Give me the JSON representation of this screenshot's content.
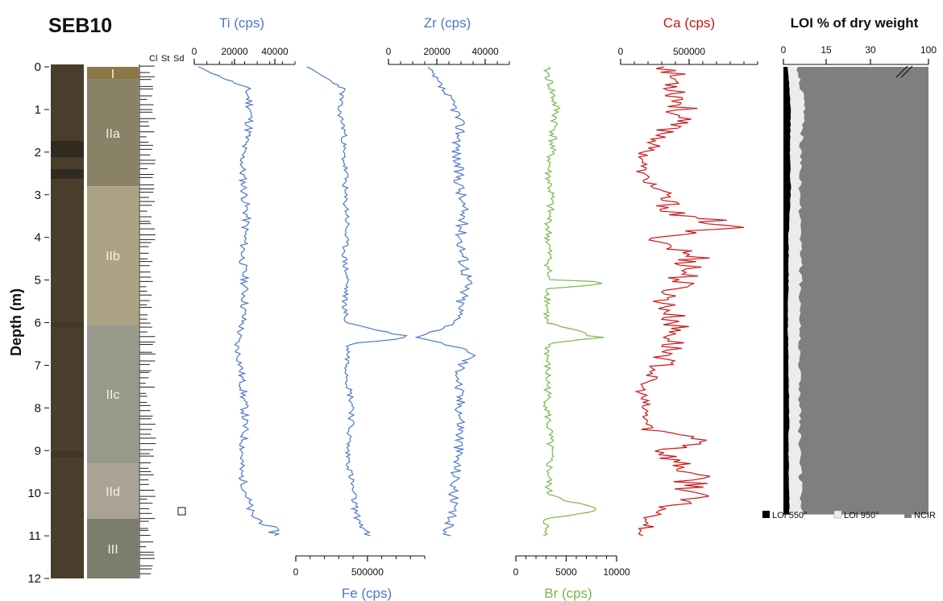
{
  "core_name": "SEB10",
  "depth_axis": {
    "label": "Depth (m)",
    "min": 0,
    "max": 12,
    "ticks": [
      "0",
      "1",
      "2",
      "3",
      "4",
      "5",
      "6",
      "7",
      "8",
      "9",
      "10",
      "11",
      "12"
    ]
  },
  "grain_size_header": [
    "Cl",
    "St",
    "Sd"
  ],
  "units": [
    {
      "label": "I",
      "top": 0.0,
      "bottom": 0.3,
      "color": "#8a7848"
    },
    {
      "label": "IIa",
      "top": 0.3,
      "bottom": 2.8,
      "color": "#8a8266"
    },
    {
      "label": "IIb",
      "top": 2.8,
      "bottom": 6.05,
      "color": "#ada384"
    },
    {
      "label": "IIc",
      "top": 6.05,
      "bottom": 9.3,
      "color": "#98998a"
    },
    {
      "label": "IId",
      "top": 9.3,
      "bottom": 10.6,
      "color": "#a9a295"
    },
    {
      "label": "III",
      "top": 10.6,
      "bottom": 12.0,
      "color": "#7c7d6d"
    }
  ],
  "colors": {
    "ti": "#4a78c8",
    "fe": "#4a78c8",
    "zr": "#4a78c8",
    "br": "#7ab648",
    "ca": "#cc1414",
    "loi550": "#000000",
    "loi950": "#ececec",
    "ncir": "#7f7f7f"
  },
  "legend": [
    "LOI 550°",
    "LOI 950°",
    "NCIR"
  ],
  "chart_data": [
    {
      "type": "line",
      "title": "Ti (cps)",
      "axis_position": "top",
      "xlim": [
        0,
        50000
      ],
      "tick_labels": [
        "0",
        "20000",
        "40000"
      ],
      "series": [
        {
          "depth": [
            0,
            0.5,
            1,
            1.5,
            2,
            2.5,
            3,
            3.5,
            4,
            4.5,
            5,
            5.5,
            6,
            6.5,
            7,
            7.5,
            8,
            8.5,
            9,
            9.5,
            10,
            10.5,
            10.8,
            11.0
          ],
          "values": [
            2000,
            26000,
            28000,
            27000,
            24000,
            24000,
            25000,
            26000,
            25000,
            24000,
            25000,
            25000,
            24000,
            21000,
            23000,
            24000,
            25000,
            25000,
            24000,
            23000,
            26000,
            28000,
            38000,
            41000
          ]
        }
      ]
    },
    {
      "type": "line",
      "title": "Fe (cps)",
      "axis_position": "bottom",
      "xlim": [
        0,
        900000
      ],
      "tick_labels": [
        "0",
        "500000"
      ],
      "series": [
        {
          "depth": [
            0,
            0.5,
            1,
            1.5,
            2,
            2.5,
            3,
            3.5,
            4,
            4.5,
            5,
            5.5,
            6,
            6.35,
            6.5,
            7,
            7.5,
            8,
            8.5,
            9,
            9.5,
            10,
            10.5,
            11.0
          ],
          "values": [
            80000,
            330000,
            300000,
            340000,
            330000,
            350000,
            340000,
            360000,
            350000,
            340000,
            360000,
            340000,
            350000,
            800000,
            370000,
            360000,
            370000,
            400000,
            380000,
            360000,
            380000,
            400000,
            420000,
            500000
          ]
        }
      ]
    },
    {
      "type": "line",
      "title": "Zr (cps)",
      "axis_position": "top",
      "xlim": [
        0,
        50000
      ],
      "tick_labels": [
        "0",
        "20000",
        "40000"
      ],
      "series": [
        {
          "depth": [
            0,
            0.5,
            1,
            1.5,
            2,
            2.5,
            3,
            3.5,
            4,
            4.5,
            5,
            5.5,
            6,
            6.35,
            6.7,
            7,
            7.5,
            8,
            8.5,
            9,
            9.5,
            10,
            10.5,
            11.0
          ],
          "values": [
            16000,
            22000,
            28000,
            30000,
            28000,
            29000,
            30000,
            31000,
            30000,
            31000,
            33000,
            30000,
            29000,
            12000,
            36000,
            30000,
            29000,
            30000,
            30000,
            29000,
            28000,
            27000,
            26000,
            24000
          ]
        }
      ]
    },
    {
      "type": "line",
      "title": "Br (cps)",
      "axis_position": "bottom",
      "xlim": [
        0,
        10000
      ],
      "tick_labels": [
        "0",
        "5000",
        "10000"
      ],
      "series": [
        {
          "depth": [
            0,
            0.5,
            1,
            1.5,
            2,
            2.5,
            3,
            3.5,
            4,
            4.5,
            5,
            5.05,
            5.2,
            5.5,
            6,
            6.35,
            6.5,
            7,
            7.5,
            8,
            8.5,
            9,
            9.5,
            10,
            10.4,
            10.6,
            11.0
          ],
          "values": [
            3000,
            3500,
            4000,
            3800,
            3500,
            3200,
            3500,
            3300,
            3200,
            3300,
            3200,
            10000,
            3300,
            3200,
            3000,
            8000,
            3200,
            3100,
            3200,
            3100,
            3300,
            3400,
            3300,
            3200,
            8000,
            3000,
            3000
          ]
        }
      ]
    },
    {
      "type": "line",
      "title": "Ca (cps)",
      "axis_position": "top",
      "xlim": [
        0,
        1000000
      ],
      "tick_labels": [
        "0",
        "500000"
      ],
      "series": [
        {
          "depth": [
            0,
            0.5,
            1,
            1.5,
            2,
            2.5,
            3,
            3.5,
            3.7,
            4,
            4.5,
            5,
            5.5,
            6,
            6.5,
            7,
            7.5,
            8,
            8.5,
            8.8,
            9,
            9.5,
            10,
            10.5,
            11.0
          ],
          "values": [
            350000,
            420000,
            450000,
            350000,
            180000,
            150000,
            300000,
            400000,
            850000,
            250000,
            550000,
            450000,
            320000,
            400000,
            380000,
            300000,
            150000,
            170000,
            200000,
            700000,
            300000,
            500000,
            550000,
            250000,
            150000
          ]
        }
      ]
    },
    {
      "type": "area",
      "title": "LOI % of dry weight",
      "axis_position": "top",
      "xlim": [
        0,
        100
      ],
      "tick_labels": [
        "0",
        "15",
        "30",
        "100"
      ],
      "series": [
        {
          "name": "LOI 550°",
          "depth": [
            0,
            0.5,
            1,
            2,
            3,
            4,
            5,
            6,
            7,
            8,
            9,
            10,
            10.5
          ],
          "values": [
            3,
            4,
            5,
            4.5,
            5,
            3.5,
            3.5,
            3,
            3.5,
            4,
            3.5,
            4,
            4
          ]
        },
        {
          "name": "LOI 950°",
          "depth": [
            0,
            0.5,
            1,
            2,
            3,
            4,
            5,
            6,
            7,
            8,
            9,
            10,
            10.5
          ],
          "values": [
            10,
            12,
            14,
            12,
            11,
            12,
            12,
            11,
            11,
            11,
            11,
            12,
            12
          ]
        },
        {
          "name": "NCIR",
          "depth": [
            0,
            0.5,
            1,
            2,
            3,
            4,
            5,
            6,
            7,
            8,
            9,
            10,
            10.5
          ],
          "values": [
            100,
            100,
            100,
            100,
            100,
            100,
            100,
            100,
            100,
            100,
            100,
            100,
            100
          ]
        }
      ]
    }
  ]
}
